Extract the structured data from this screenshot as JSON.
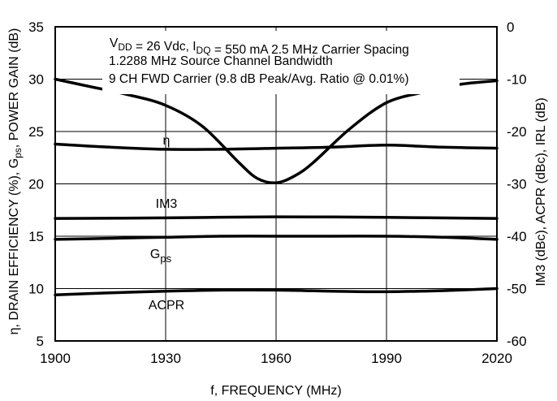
{
  "chart_data": {
    "type": "line",
    "xlabel": "f, FREQUENCY (MHz)",
    "ylabel_left": "η, DRAIN EFFICIENCY (%), Gps, POWER GAIN (dB)",
    "ylabel_right": "IM3 (dBc), ACPR (dBc), IRL (dB)",
    "xlim": [
      1900,
      2020
    ],
    "ylim_left": [
      5,
      35
    ],
    "ylim_right": [
      -60,
      0
    ],
    "x_ticks": [
      "1900",
      "1930",
      "1960",
      "1990",
      "2020"
    ],
    "y_ticks_left": [
      "35",
      "30",
      "25",
      "20",
      "15",
      "10",
      "5"
    ],
    "y_ticks_right": [
      "0",
      "-10",
      "-20",
      "-30",
      "-40",
      "-50",
      "-60"
    ],
    "grid": true,
    "annotations": [
      "VDD = 26 Vdc, IDQ = 550 mA 2.5 MHz Carrier Spacing",
      "1.2288 MHz Source Channel Bandwidth",
      "9 CH FWD Carrier (9.8 dB Peak/Avg. Ratio @ 0.01%)"
    ],
    "series": [
      {
        "name": "η",
        "axis": "left",
        "x": [
          1900,
          1915,
          1930,
          1945,
          1960,
          1975,
          1990,
          2005,
          2020
        ],
        "y": [
          23.8,
          23.5,
          23.3,
          23.3,
          23.4,
          23.5,
          23.7,
          23.5,
          23.4
        ]
      },
      {
        "name": "IM3",
        "axis": "right",
        "x": [
          1900,
          1930,
          1960,
          1990,
          2020
        ],
        "y": [
          -36.6,
          -36.5,
          -36.3,
          -36.4,
          -36.6
        ]
      },
      {
        "name": "Gps",
        "axis": "left",
        "x": [
          1900,
          1915,
          1930,
          1945,
          1960,
          1975,
          1990,
          2005,
          2020
        ],
        "y": [
          14.7,
          14.8,
          14.9,
          15.0,
          15.0,
          15.0,
          15.0,
          14.9,
          14.7
        ]
      },
      {
        "name": "ACPR",
        "axis": "right",
        "x": [
          1900,
          1915,
          1930,
          1945,
          1960,
          1975,
          1990,
          2005,
          2020
        ],
        "y": [
          -51.2,
          -50.8,
          -50.5,
          -50.3,
          -50.3,
          -50.5,
          -50.6,
          -50.4,
          -50.0
        ]
      },
      {
        "name": "IRL",
        "axis": "right",
        "x": [
          1900,
          1910,
          1920,
          1930,
          1940,
          1950,
          1955,
          1960,
          1965,
          1970,
          1980,
          1990,
          2000,
          2010,
          2020
        ],
        "y": [
          -10.0,
          -11.5,
          -13.0,
          -15.0,
          -19.0,
          -26.0,
          -29.0,
          -29.8,
          -28.5,
          -26.0,
          -19.5,
          -14.5,
          -12.5,
          -11.0,
          -10.3
        ]
      }
    ],
    "series_labels": [
      {
        "text": "η"
      },
      {
        "text": "IM3"
      },
      {
        "text": "G",
        "sub": "ps"
      },
      {
        "text": "ACPR"
      }
    ]
  }
}
